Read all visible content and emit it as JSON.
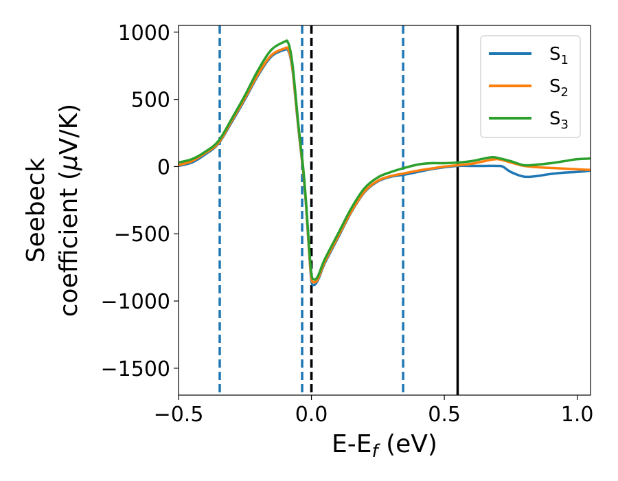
{
  "chart_data": {
    "type": "line",
    "xlabel": "E-E",
    "xlabel_sub": "f",
    "xlabel_unit": " (eV)",
    "ylabel_line1": "Seebeck",
    "ylabel_line2": "coefficient  (",
    "ylabel_mu": "μ",
    "ylabel_unit": "V/K)",
    "xlim": [
      -0.5,
      1.05
    ],
    "ylim": [
      -1700,
      1050
    ],
    "xticks": [
      -0.5,
      0.0,
      0.5,
      1.0
    ],
    "xtick_labels": [
      "−0.5",
      "0.0",
      "0.5",
      "1.0"
    ],
    "yticks": [
      -1500,
      -1000,
      -500,
      0,
      500,
      1000
    ],
    "ytick_labels": [
      "−1500",
      "−1000",
      "−500",
      "0",
      "500",
      "1000"
    ],
    "grid": false,
    "legend_position": "top-right",
    "vlines": [
      {
        "x": -0.345,
        "style": "dashed",
        "color": "#1f77b4"
      },
      {
        "x": -0.035,
        "style": "dashed",
        "color": "#1f77b4"
      },
      {
        "x": 0.0,
        "style": "dashed",
        "color": "#1f77b4"
      },
      {
        "x": 0.345,
        "style": "dashed",
        "color": "#1f77b4"
      },
      {
        "x": 0.0,
        "style": "dashed",
        "color": "#000000"
      },
      {
        "x": 0.55,
        "style": "solid",
        "color": "#000000"
      }
    ],
    "series": [
      {
        "name": "S",
        "sub": "1",
        "color": "#1f77b4",
        "x": [
          -0.5,
          -0.45,
          -0.4,
          -0.35,
          -0.3,
          -0.25,
          -0.2,
          -0.15,
          -0.1,
          -0.09,
          -0.08,
          -0.07,
          -0.06,
          -0.05,
          -0.04,
          -0.03,
          -0.02,
          -0.01,
          0.0,
          0.01,
          0.02,
          0.03,
          0.05,
          0.1,
          0.15,
          0.2,
          0.25,
          0.3,
          0.35,
          0.4,
          0.45,
          0.5,
          0.55,
          0.6,
          0.65,
          0.7,
          0.72,
          0.75,
          0.8,
          0.85,
          0.9,
          0.95,
          1.0,
          1.05
        ],
        "y": [
          5,
          30,
          90,
          170,
          330,
          500,
          680,
          820,
          870,
          870,
          820,
          700,
          500,
          300,
          120,
          -60,
          -300,
          -600,
          -850,
          -880,
          -860,
          -820,
          -720,
          -530,
          -340,
          -190,
          -110,
          -75,
          -60,
          -40,
          -20,
          -5,
          5,
          5,
          5,
          5,
          0,
          -40,
          -75,
          -70,
          -55,
          -45,
          -40,
          -30
        ]
      },
      {
        "name": "S",
        "sub": "2",
        "color": "#ff7f0e",
        "x": [
          -0.5,
          -0.45,
          -0.4,
          -0.35,
          -0.3,
          -0.25,
          -0.2,
          -0.15,
          -0.1,
          -0.09,
          -0.08,
          -0.07,
          -0.06,
          -0.05,
          -0.04,
          -0.03,
          -0.02,
          -0.01,
          0.0,
          0.01,
          0.02,
          0.03,
          0.05,
          0.1,
          0.15,
          0.2,
          0.25,
          0.3,
          0.35,
          0.4,
          0.45,
          0.5,
          0.55,
          0.6,
          0.65,
          0.7,
          0.75,
          0.8,
          0.85,
          0.9,
          0.95,
          1.0,
          1.05
        ],
        "y": [
          10,
          40,
          100,
          175,
          340,
          510,
          690,
          830,
          880,
          880,
          830,
          710,
          510,
          310,
          130,
          -50,
          -290,
          -590,
          -830,
          -860,
          -850,
          -810,
          -710,
          -520,
          -335,
          -185,
          -105,
          -70,
          -50,
          -30,
          -15,
          0,
          10,
          20,
          40,
          55,
          30,
          5,
          -5,
          -10,
          -15,
          -20,
          -25
        ]
      },
      {
        "name": "S",
        "sub": "3",
        "color": "#2ca02c",
        "x": [
          -0.5,
          -0.45,
          -0.4,
          -0.35,
          -0.3,
          -0.25,
          -0.2,
          -0.15,
          -0.1,
          -0.09,
          -0.08,
          -0.07,
          -0.06,
          -0.05,
          -0.04,
          -0.03,
          -0.02,
          -0.01,
          0.0,
          0.01,
          0.02,
          0.03,
          0.05,
          0.1,
          0.15,
          0.2,
          0.25,
          0.3,
          0.35,
          0.4,
          0.45,
          0.5,
          0.55,
          0.6,
          0.65,
          0.68,
          0.7,
          0.75,
          0.8,
          0.85,
          0.9,
          0.95,
          1.0,
          1.05
        ],
        "y": [
          30,
          55,
          110,
          190,
          355,
          530,
          720,
          870,
          930,
          930,
          870,
          740,
          540,
          330,
          150,
          -30,
          -270,
          -560,
          -800,
          -840,
          -830,
          -790,
          -690,
          -500,
          -310,
          -160,
          -80,
          -40,
          -10,
          15,
          25,
          25,
          30,
          40,
          60,
          70,
          65,
          40,
          10,
          15,
          25,
          40,
          55,
          60
        ]
      }
    ]
  }
}
